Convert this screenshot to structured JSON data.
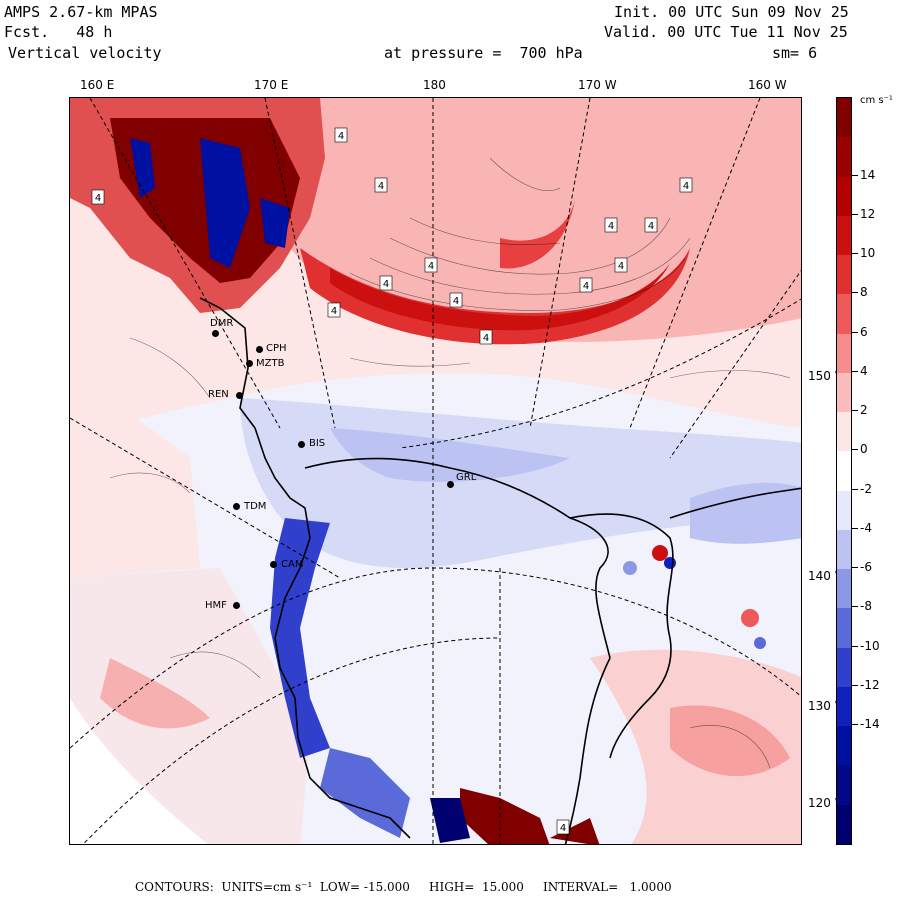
{
  "header": {
    "model": "AMPS 2.67-km MPAS",
    "forecast": "Fcst.   48 h",
    "field": "Vertical velocity",
    "init": "Init. 00 UTC Sun 09 Nov 25",
    "valid": "Valid. 00 UTC Tue 11 Nov 25",
    "pressure": "at pressure =  700 hPa",
    "smoothing": "sm= 6"
  },
  "longitude_labels": [
    "160 E",
    "170 E",
    "180",
    "170 W",
    "160 W"
  ],
  "latitude_labels": [
    "150 W",
    "140 W",
    "130 W",
    "120 W"
  ],
  "stations": [
    "BIS",
    "CPH",
    "MZTB",
    "REN",
    "TDM",
    "CAM",
    "HMF",
    "GRL",
    "DMR"
  ],
  "colorbar": {
    "unit": "cm s⁻¹",
    "labels": [
      "14",
      "12",
      "10",
      "8",
      "6",
      "4",
      "2",
      "0",
      "-2",
      "-4",
      "-6",
      "-8",
      "-10",
      "-12",
      "-14"
    ],
    "colors": [
      "#800000",
      "#9b0000",
      "#b40000",
      "#cc1010",
      "#e03030",
      "#ee5a5a",
      "#f68c8c",
      "#fbbcbc",
      "#fde6e6",
      "#ffffff",
      "#e6e9fb",
      "#bcc3f2",
      "#8c98e6",
      "#5a6ad8",
      "#3040cc",
      "#1020bb",
      "#0010a0",
      "#000888",
      "#000070"
    ]
  },
  "footer": {
    "contours": "CONTOURS:  UNITS=cm s⁻¹  LOW= -15.000     HIGH=  15.000     INTERVAL=   1.0000"
  }
}
